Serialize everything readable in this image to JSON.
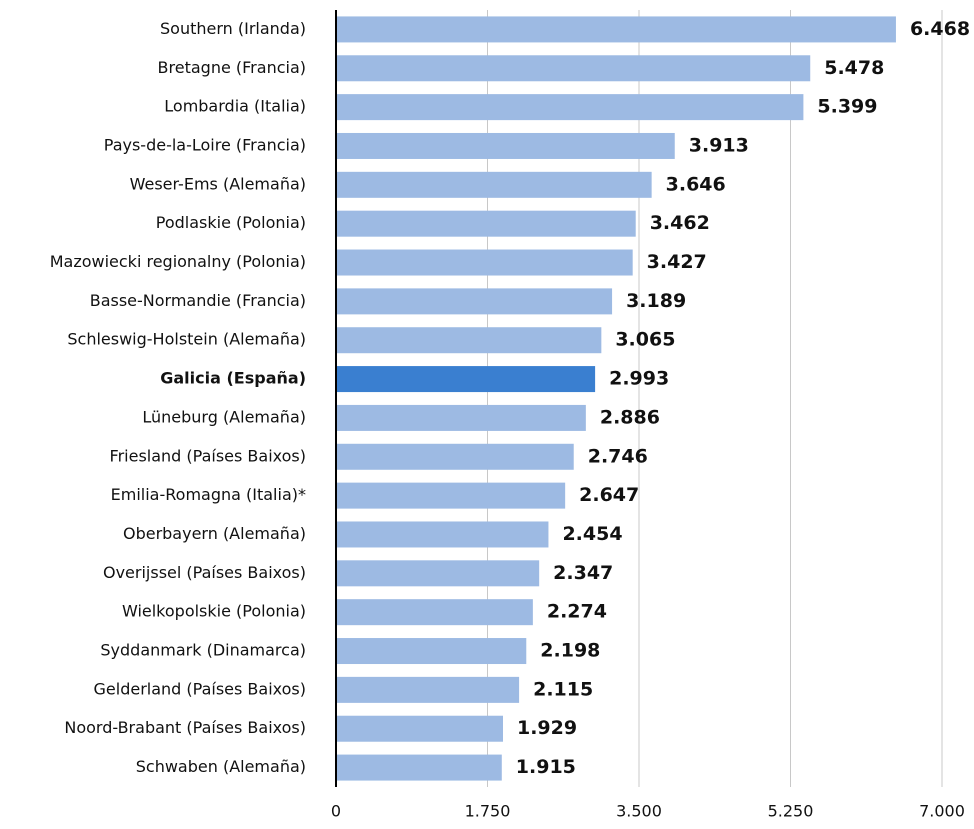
{
  "chart_data": {
    "type": "bar",
    "orientation": "horizontal",
    "categories": [
      "Southern (Irlanda)",
      "Bretagne (Francia)",
      "Lombardia (Italia)",
      "Pays-de-la-Loire (Francia)",
      "Weser-Ems (Alemaña)",
      "Podlaskie (Polonia)",
      "Mazowiecki regionalny (Polonia)",
      "Basse-Normandie (Francia)",
      "Schleswig-Holstein (Alemaña)",
      "Galicia (España)",
      "Lüneburg (Alemaña)",
      "Friesland (Países Baixos)",
      "Emilia-Romagna (Italia)*",
      "Oberbayern (Alemaña)",
      "Overijssel (Países Baixos)",
      "Wielkopolskie (Polonia)",
      "Syddanmark (Dinamarca)",
      "Gelderland (Países Baixos)",
      "Noord-Brabant (Países Baixos)",
      "Schwaben (Alemaña)"
    ],
    "values": [
      6468,
      5478,
      5399,
      3913,
      3646,
      3462,
      3427,
      3189,
      3065,
      2993,
      2886,
      2746,
      2647,
      2454,
      2347,
      2274,
      2198,
      2115,
      1929,
      1915
    ],
    "value_labels": [
      "6.468",
      "5.478",
      "5.399",
      "3.913",
      "3.646",
      "3.462",
      "3.427",
      "3.189",
      "3.065",
      "2.993",
      "2.886",
      "2.746",
      "2.647",
      "2.454",
      "2.347",
      "2.274",
      "2.198",
      "2.115",
      "1.929",
      "1.915"
    ],
    "colors": [
      "#9dbae3",
      "#9dbae3",
      "#9dbae3",
      "#9dbae3",
      "#9dbae3",
      "#9dbae3",
      "#9dbae3",
      "#9dbae3",
      "#9dbae3",
      "#3a7fd0",
      "#9dbae3",
      "#9dbae3",
      "#9dbae3",
      "#9dbae3",
      "#9dbae3",
      "#9dbae3",
      "#9dbae3",
      "#9dbae3",
      "#9dbae3",
      "#9dbae3"
    ],
    "highlight_color": "#3a7fd0",
    "xlim": [
      0,
      7000
    ],
    "xticks": [
      0,
      {
        "value": 1750,
        "label": "1.750"
      },
      {
        "value": 3500,
        "label": "3.500"
      },
      {
        "value": 5250,
        "label": "5.250"
      },
      {
        "value": 7000,
        "label": "7.000"
      }
    ],
    "grid": true
  }
}
